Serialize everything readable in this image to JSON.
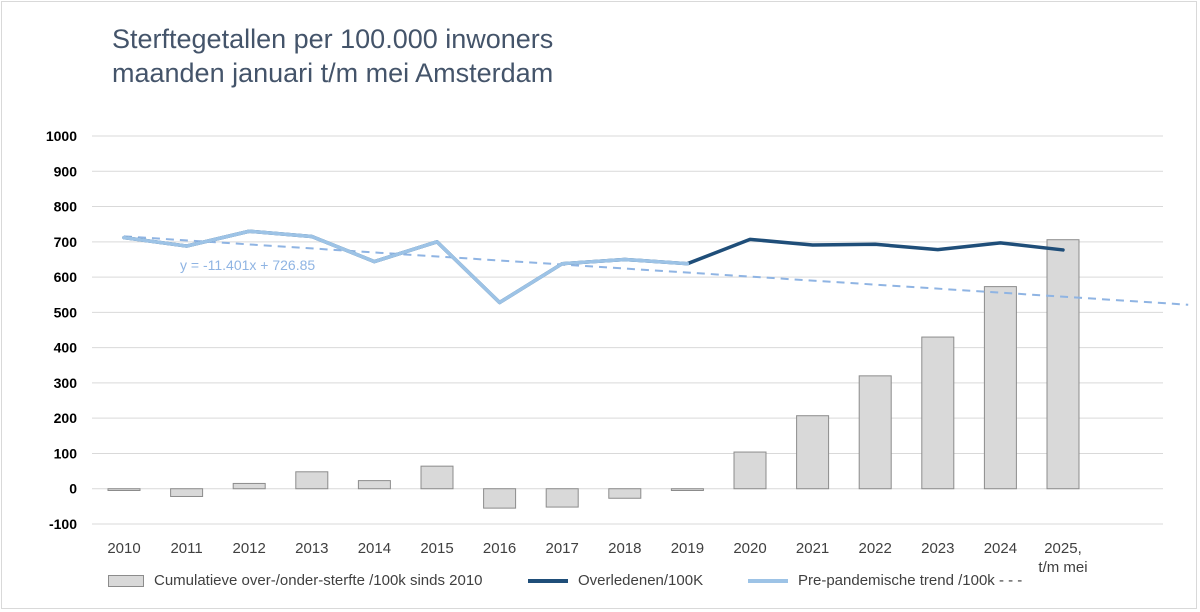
{
  "title": {
    "line1": "Sterftegetallen per 100.000 inwoners",
    "line2": "maanden januari t/m mei Amsterdam"
  },
  "colors": {
    "bar_fill": "#d9d9d9",
    "bar_stroke": "#8c8c8c",
    "overleden_line": "#1f4e79",
    "prepandemic_line": "#9dc3e6",
    "trend_dashed": "#8fb4e3",
    "grid": "#d9d9d9",
    "title": "#44546a"
  },
  "legend": {
    "bars": "Cumulatieve over-/onder-sterfte /100k sinds 2010",
    "overleden": "Overledenen/100K",
    "prepandemic": "Pre-pandemische trend /100k - - -"
  },
  "chart_data": {
    "type": "bar",
    "categories": [
      "2010",
      "2011",
      "2012",
      "2013",
      "2014",
      "2015",
      "2016",
      "2017",
      "2018",
      "2019",
      "2020",
      "2021",
      "2022",
      "2023",
      "2024",
      "2025, t/m mei"
    ],
    "x_tick_labels": [
      [
        "2010"
      ],
      [
        "2011"
      ],
      [
        "2012"
      ],
      [
        "2013"
      ],
      [
        "2014"
      ],
      [
        "2015"
      ],
      [
        "2016"
      ],
      [
        "2017"
      ],
      [
        "2018"
      ],
      [
        "2019"
      ],
      [
        "2020"
      ],
      [
        "2021"
      ],
      [
        "2022"
      ],
      [
        "2023"
      ],
      [
        "2024"
      ],
      [
        "2025,",
        "t/m mei"
      ]
    ],
    "ylim": [
      -100,
      1000
    ],
    "yticks": [
      -100,
      0,
      100,
      200,
      300,
      400,
      500,
      600,
      700,
      800,
      900,
      1000
    ],
    "grid": true,
    "legend_position": "bottom",
    "series": [
      {
        "name": "Cumulatieve over-/onder-sterfte /100k sinds 2010",
        "kind": "bar",
        "values": [
          -5,
          -22,
          15,
          48,
          23,
          64,
          -55,
          -52,
          -27,
          -5,
          104,
          207,
          320,
          430,
          573,
          706
        ]
      },
      {
        "name": "Overledenen/100K",
        "kind": "line",
        "values": [
          712,
          688,
          730,
          715,
          644,
          700,
          528,
          638,
          650,
          638,
          707,
          691,
          693,
          678,
          697,
          677
        ]
      },
      {
        "name": "Pre-pandemische trend /100k - - -",
        "kind": "line",
        "values": [
          712,
          688,
          730,
          715,
          644,
          700,
          528,
          638,
          650,
          638,
          null,
          null,
          null,
          null,
          null,
          null
        ]
      }
    ],
    "trendline": {
      "label": "y = -11.401x + 726.85",
      "slope": -11.401,
      "intercept": 726.85,
      "x_from": 1,
      "x_to": 18
    }
  }
}
